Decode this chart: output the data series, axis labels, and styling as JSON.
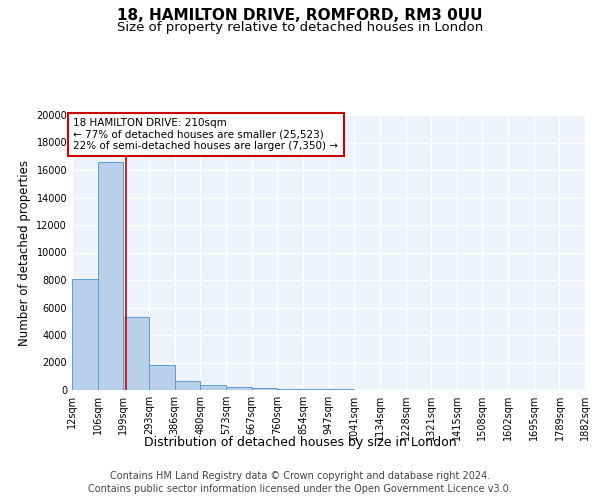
{
  "title": "18, HAMILTON DRIVE, ROMFORD, RM3 0UU",
  "subtitle": "Size of property relative to detached houses in London",
  "xlabel": "Distribution of detached houses by size in London",
  "ylabel": "Number of detached properties",
  "footer_line1": "Contains HM Land Registry data © Crown copyright and database right 2024.",
  "footer_line2": "Contains public sector information licensed under the Open Government Licence v3.0.",
  "bin_edges": [
    12,
    106,
    199,
    293,
    386,
    480,
    573,
    667,
    760,
    854,
    947,
    1041,
    1134,
    1228,
    1321,
    1415,
    1508,
    1602,
    1695,
    1789,
    1882
  ],
  "bar_heights": [
    8100,
    16600,
    5300,
    1850,
    680,
    380,
    230,
    130,
    90,
    60,
    40,
    30,
    25,
    20,
    15,
    12,
    10,
    8,
    6,
    5
  ],
  "bar_color": "#b8d0ea",
  "bar_edge_color": "#5b9bd5",
  "property_size": 210,
  "vline_color": "#cc0000",
  "annotation_text": "18 HAMILTON DRIVE: 210sqm\n← 77% of detached houses are smaller (25,523)\n22% of semi-detached houses are larger (7,350) →",
  "annotation_box_color": "#ffffff",
  "annotation_box_edge": "#cc0000",
  "ylim": [
    0,
    20000
  ],
  "yticks": [
    0,
    2000,
    4000,
    6000,
    8000,
    10000,
    12000,
    14000,
    16000,
    18000,
    20000
  ],
  "background_color": "#edf2fb",
  "grid_color": "#ffffff",
  "title_fontsize": 11,
  "subtitle_fontsize": 9.5,
  "ylabel_fontsize": 8.5,
  "xlabel_fontsize": 9,
  "tick_fontsize": 7,
  "annotation_fontsize": 7.5,
  "footer_fontsize": 7
}
